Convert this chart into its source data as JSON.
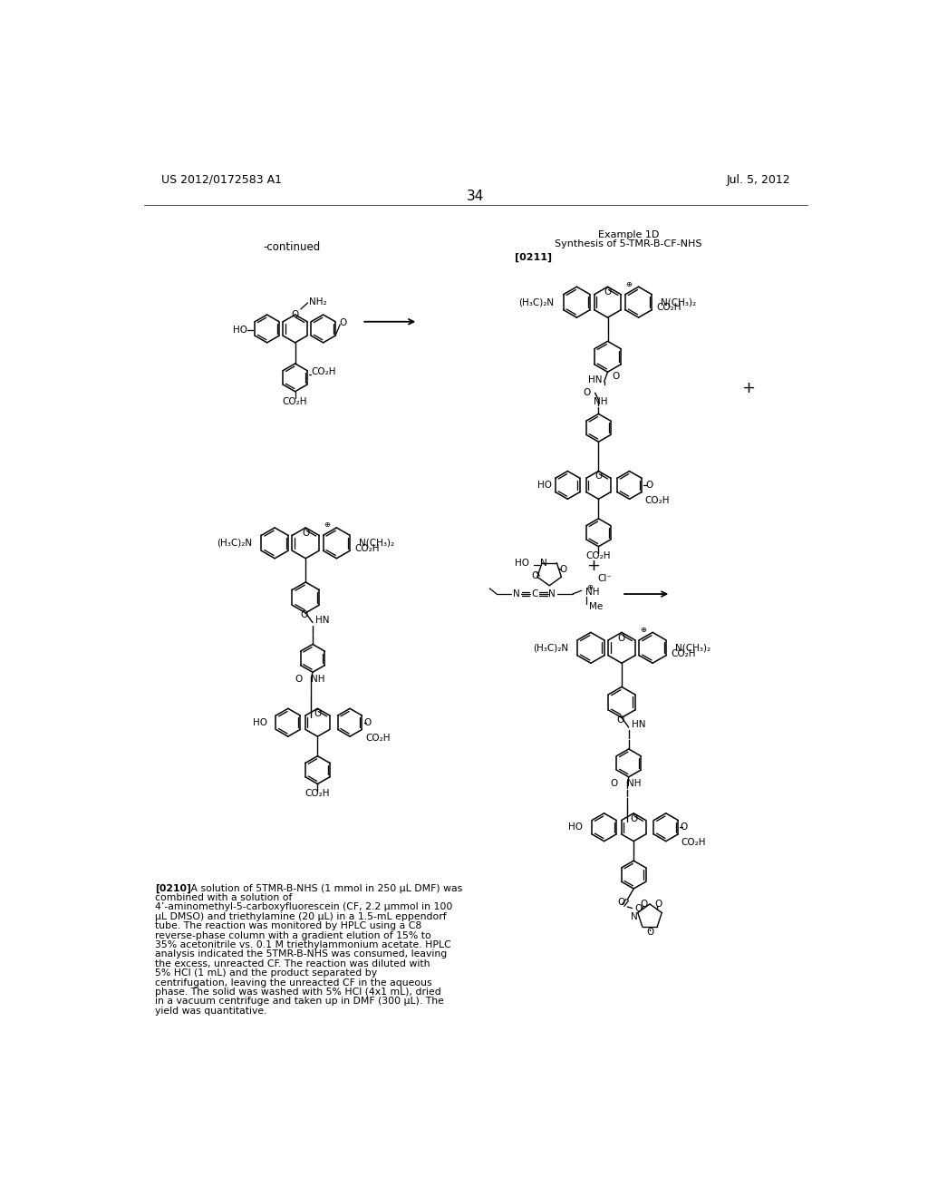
{
  "background_color": "#ffffff",
  "header_left": "US 2012/0172583 A1",
  "header_right": "Jul. 5, 2012",
  "page_number": "34",
  "continued_label": "-continued",
  "example_title_line1": "Example 1D",
  "example_title_line2": "Synthesis of 5-TMR-B-CF-NHS",
  "para_label": "[0210]",
  "para_text": "   A solution of 5TMR-B-NHS (1 mmol in 250 μL DMF) was combined with a solution of 4’-aminomethyl-5-carboxyfluorescein (CF, 2.2 μmmol in 100 μL DMSO) and triethylamine (20 μL) in a 1.5-mL eppendorf tube. The reaction was monitored by HPLC using a C8 reverse-phase column with a gradient elution of 15% to 35% acetonitrile vs. 0.1 M triethylammonium acetate. HPLC analysis indicated the 5TMR-B-NHS was consumed, leaving the excess, unreacted CF. The reaction was diluted with 5% HCl (1 mL) and the product separated by centrifugation, leaving the unreacted CF in the aqueous phase. The solid was washed with 5% HCl (4x1 mL), dried in a vacuum centrifuge and taken up in DMF (300 μL). The yield was quantitative.",
  "ref_label": "[0211]"
}
